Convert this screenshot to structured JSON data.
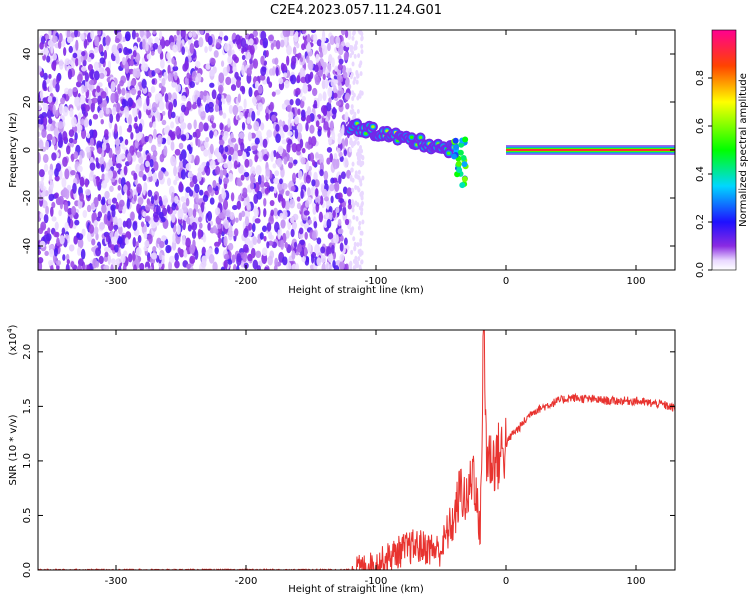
{
  "title": "C2E4.2023.057.11.24.G01",
  "colors": {
    "signal": "#e8332f",
    "noise": "#6a1fe6",
    "frame": "#000000"
  },
  "chart_data": [
    {
      "type": "heatmap",
      "xlabel": "Height of straight line (km)",
      "ylabel": "Frequency (Hz)",
      "xlim": [
        -360,
        130
      ],
      "ylim": [
        -50,
        50
      ],
      "x_ticks": [
        -300,
        -200,
        -100,
        0,
        100
      ],
      "y_ticks": [
        -40,
        -20,
        0,
        20,
        40
      ],
      "colorbar": {
        "label": "Normalized spectral amplitude",
        "range": [
          0,
          1
        ],
        "ticks": [
          "0.0",
          "0.2",
          "0.4",
          "0.6",
          "0.8"
        ],
        "colormap": "rainbow (white-violet-blue-cyan-green-yellow-red-magenta)"
      },
      "features": [
        {
          "x_range": [
            -360,
            -120
          ],
          "freq_range": [
            -50,
            50
          ],
          "amplitude": 0.1,
          "kind": "noise"
        },
        {
          "x_range": [
            -120,
            -40
          ],
          "freq_center_start": 10,
          "freq_center_end": 0,
          "amplitude": 0.5,
          "kind": "drifting signal"
        },
        {
          "x_range": [
            -40,
            -30
          ],
          "freq_range": [
            -15,
            5
          ],
          "amplitude": 0.4,
          "kind": "scatter"
        },
        {
          "x_range": [
            0,
            130
          ],
          "freq_center": 0,
          "amplitude": 1.0,
          "kind": "carrier line"
        }
      ]
    },
    {
      "type": "line",
      "xlabel": "Height of straight line (km)",
      "ylabel": "SNR (10 * v/v)",
      "y_multiplier": "(x10",
      "y_multiplier_exp": "4",
      "y_multiplier_close": ")",
      "xlim": [
        -360,
        130
      ],
      "ylim": [
        0,
        2.2
      ],
      "x_ticks": [
        -300,
        -200,
        -100,
        0,
        100
      ],
      "y_ticks": [
        "0.0",
        "0.5",
        "1.0",
        "1.5",
        "2.0"
      ],
      "series": [
        {
          "x": [
            -360,
            -120,
            -100,
            -90,
            -80,
            -70,
            -60,
            -50,
            -45,
            -40,
            -35,
            -30,
            -25,
            -20,
            -17,
            -15,
            -10,
            -5,
            0,
            5,
            10,
            20,
            30,
            40,
            50,
            60,
            70,
            80,
            90,
            100,
            110,
            120,
            130
          ],
          "y": [
            0.0,
            0.0,
            0.05,
            0.12,
            0.18,
            0.22,
            0.2,
            0.18,
            0.35,
            0.45,
            0.75,
            0.6,
            0.95,
            0.3,
            2.2,
            1.05,
            1.0,
            1.05,
            1.15,
            1.25,
            1.3,
            1.45,
            1.5,
            1.55,
            1.58,
            1.57,
            1.56,
            1.55,
            1.55,
            1.55,
            1.53,
            1.52,
            1.48
          ]
        }
      ]
    }
  ]
}
